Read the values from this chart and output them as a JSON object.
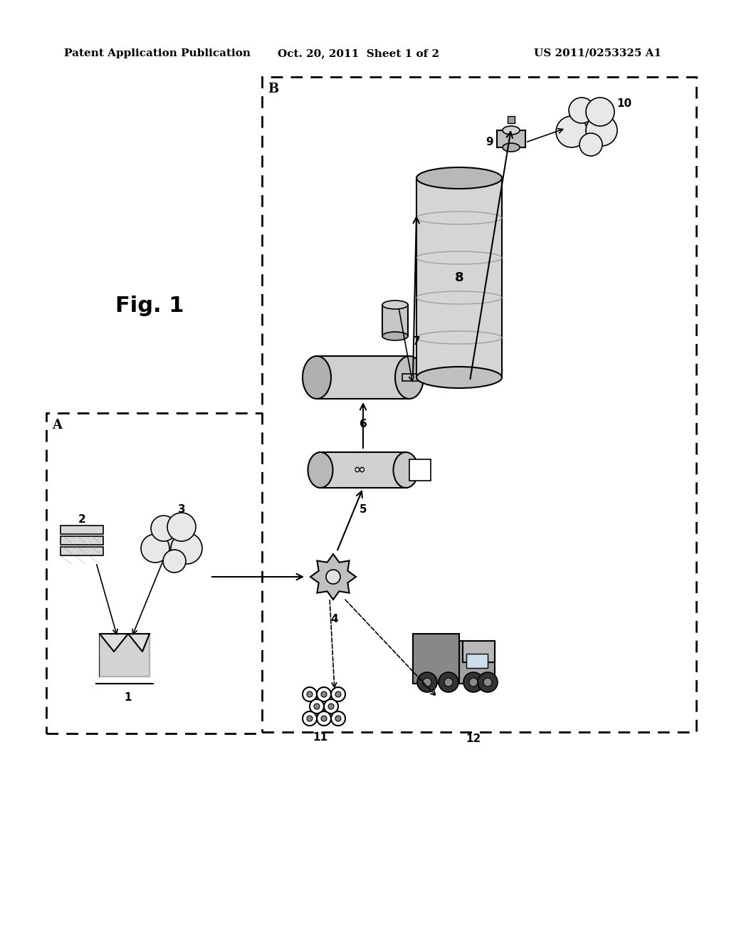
{
  "title": "Fig. 1",
  "patent_header_left": "Patent Application Publication",
  "patent_header_mid": "Oct. 20, 2011  Sheet 1 of 2",
  "patent_header_right": "US 2011/0253325 A1",
  "bg_color": "#ffffff",
  "text_color": "#000000",
  "box_A_label": "A",
  "box_B_label": "B",
  "labels": [
    "1",
    "2",
    "3",
    "4",
    "5",
    "6",
    "7",
    "8",
    "9",
    "10",
    "11",
    "12"
  ],
  "fig_label_fontsize": 22,
  "header_fontsize": 11
}
